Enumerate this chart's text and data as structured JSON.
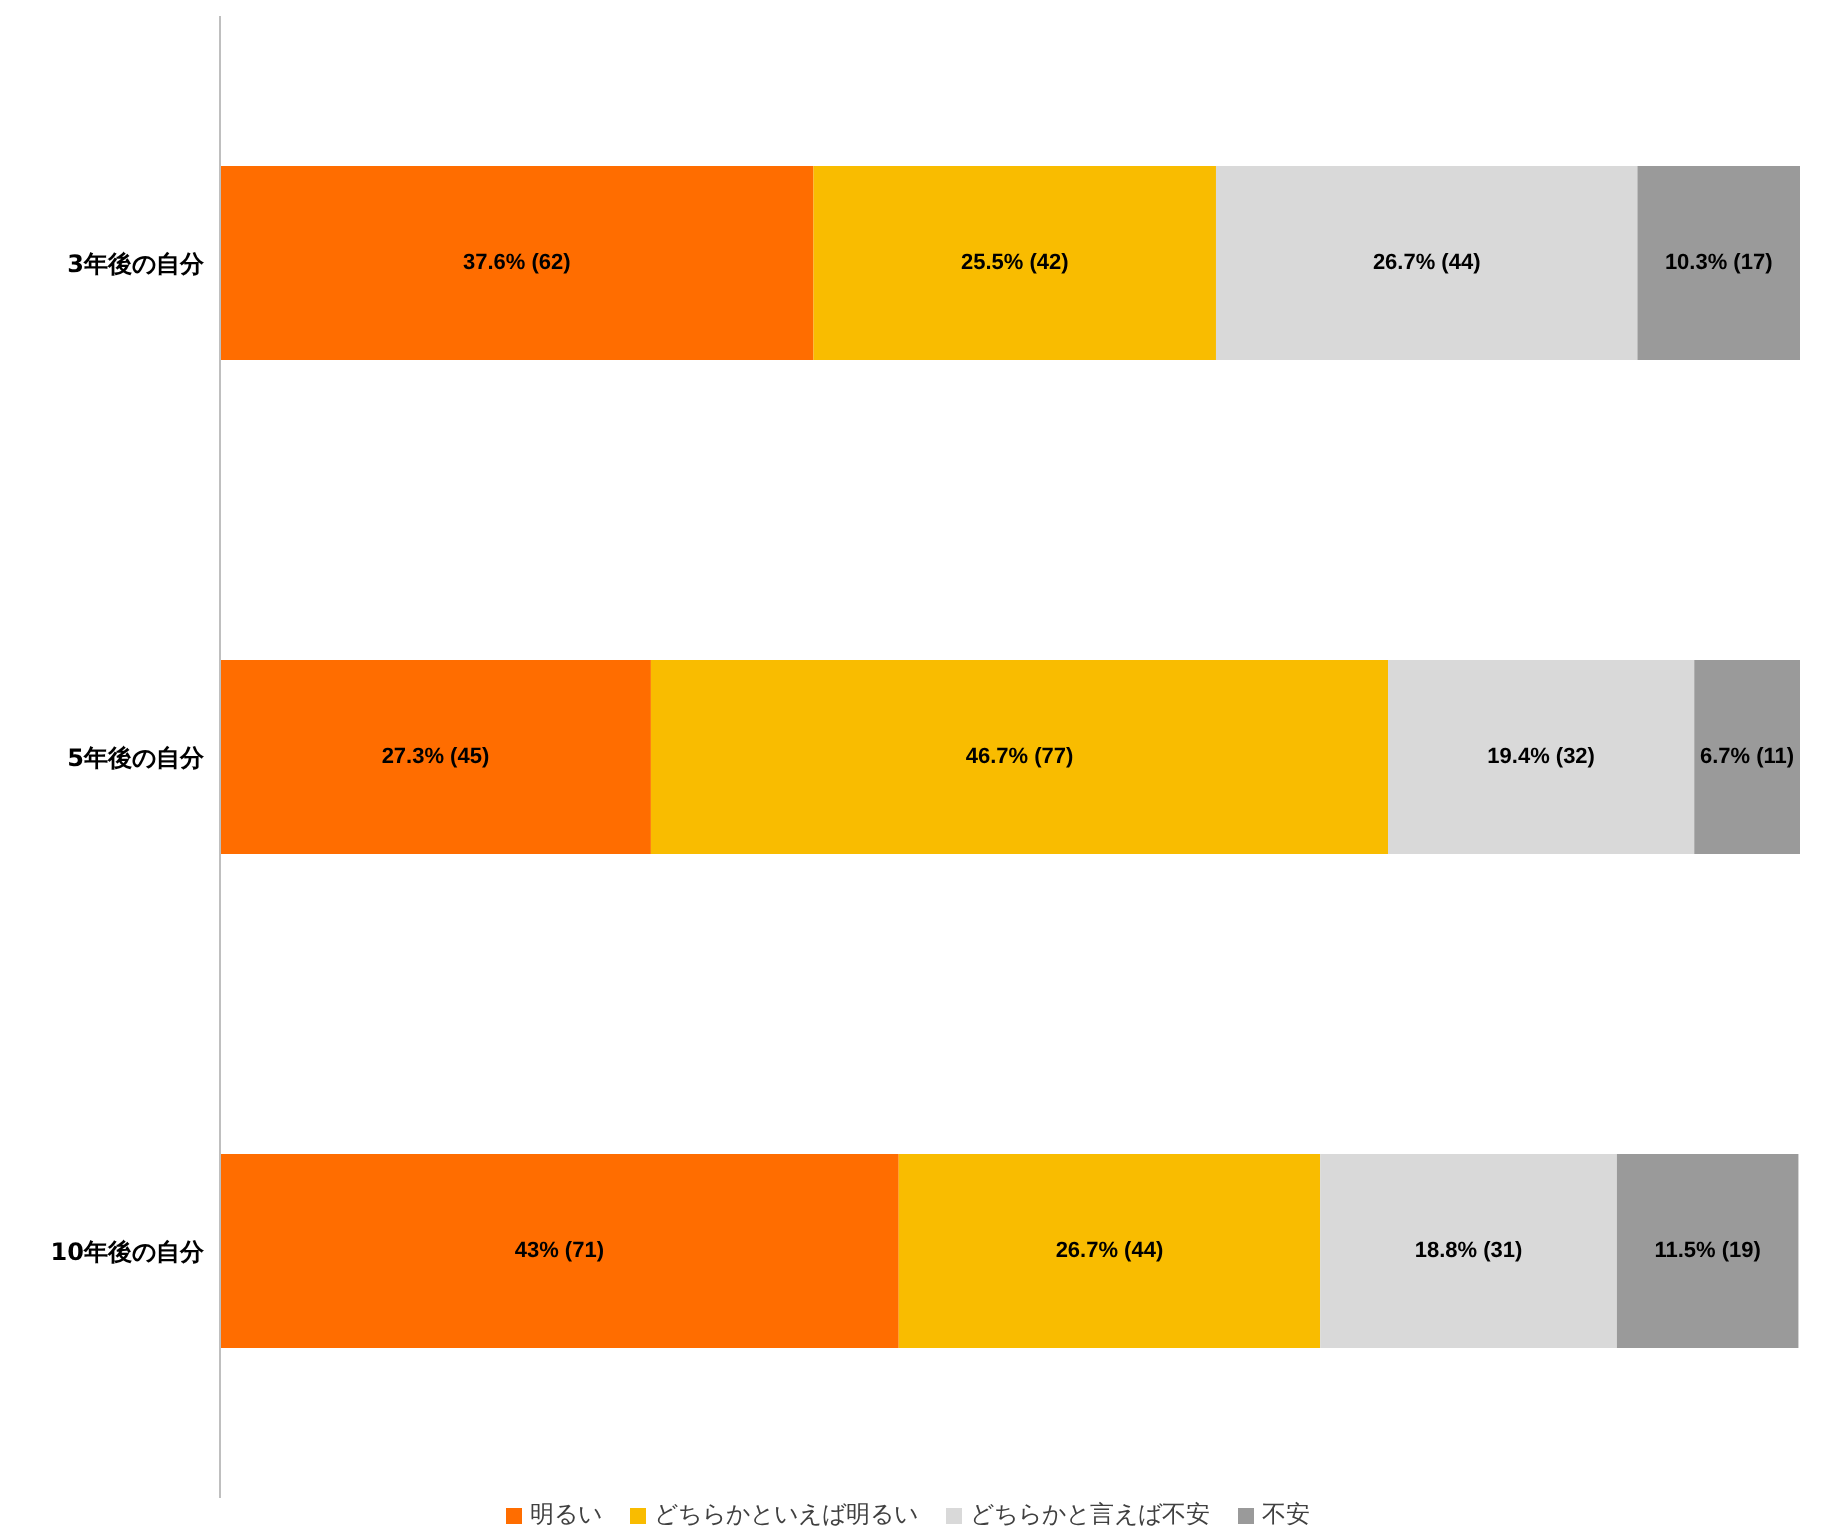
{
  "chart_data": {
    "type": "bar",
    "orientation": "horizontal",
    "stacked": true,
    "categories": [
      "3年後の自分",
      "5年後の自分",
      "10年後の自分"
    ],
    "series": [
      {
        "name": "明るい",
        "color": "#ff6d00",
        "values": [
          37.6,
          27.3,
          43
        ],
        "value_labels": [
          "37.6% (62)",
          "27.3% (45)",
          "43% (71)"
        ]
      },
      {
        "name": "どちらかといえば明るい",
        "color": "#f9bc00",
        "values": [
          25.5,
          46.7,
          26.7
        ],
        "value_labels": [
          "25.5% (42)",
          "46.7% (77)",
          "26.7% (44)"
        ]
      },
      {
        "name": "どちらかと言えば不安",
        "color": "#d9d9d9",
        "values": [
          26.7,
          19.4,
          18.8
        ],
        "value_labels": [
          "26.7% (44)",
          "19.4% (32)",
          "18.8% (31)"
        ]
      },
      {
        "name": "不安",
        "color": "#9a9a9a",
        "values": [
          10.3,
          6.7,
          11.5
        ],
        "value_labels": [
          "10.3% (17)",
          "6.7% (11)",
          "11.5% (19)"
        ]
      }
    ],
    "xlim": [
      0,
      100.1
    ],
    "tick_labels": "y",
    "grid": false,
    "legend": "bottom"
  }
}
